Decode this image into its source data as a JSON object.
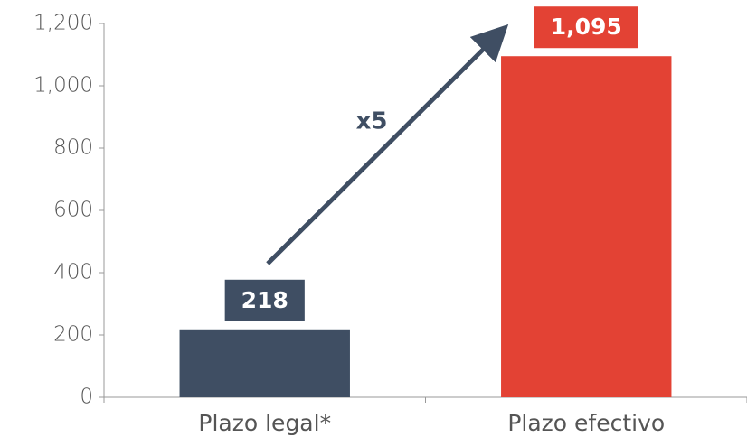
{
  "chart_data": {
    "type": "bar",
    "categories": [
      "Plazo legal*",
      "Plazo efectivo"
    ],
    "values": [
      218,
      1095
    ],
    "value_labels": [
      "218",
      "1,095"
    ],
    "colors": [
      "#3f4e63",
      "#e34234"
    ],
    "annotation": "x5",
    "ylim": [
      0,
      1200
    ],
    "yticks": [
      0,
      200,
      400,
      600,
      800,
      {
        "value": 1000,
        "label": "1,000"
      },
      {
        "value": 1200,
        "label": "1,200"
      }
    ],
    "grid": false
  }
}
